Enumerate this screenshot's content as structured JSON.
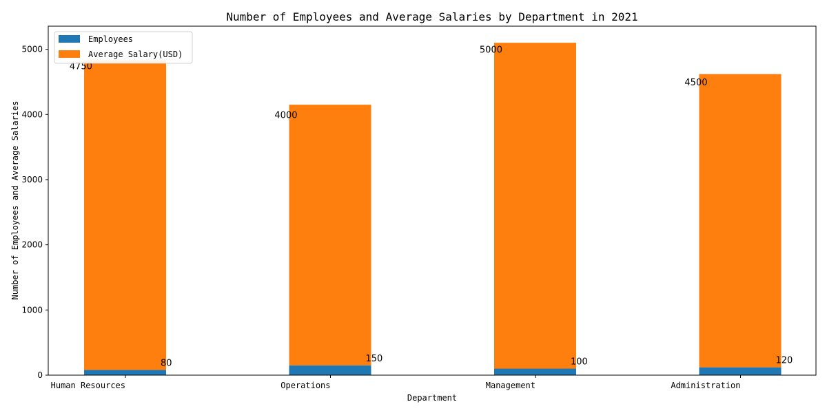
{
  "chart_data": {
    "type": "bar",
    "stacked": true,
    "title": "Number of Employees and Average Salaries by Department in 2021",
    "xlabel": "Department",
    "ylabel": "Number of Employees and Average Salaries",
    "categories": [
      "Human Resources",
      "Operations",
      "Management",
      "Administration"
    ],
    "series": [
      {
        "name": "Employees",
        "values": [
          80,
          150,
          100,
          120
        ],
        "color": "#1f77b4"
      },
      {
        "name": "Average Salary(USD)",
        "values": [
          4750,
          4000,
          5000,
          4500
        ],
        "color": "#ff7f0e"
      }
    ],
    "ylim": [
      0,
      5355
    ],
    "yticks": [
      0,
      1000,
      2000,
      3000,
      4000,
      5000
    ],
    "grid": false,
    "legend": "top-left"
  }
}
